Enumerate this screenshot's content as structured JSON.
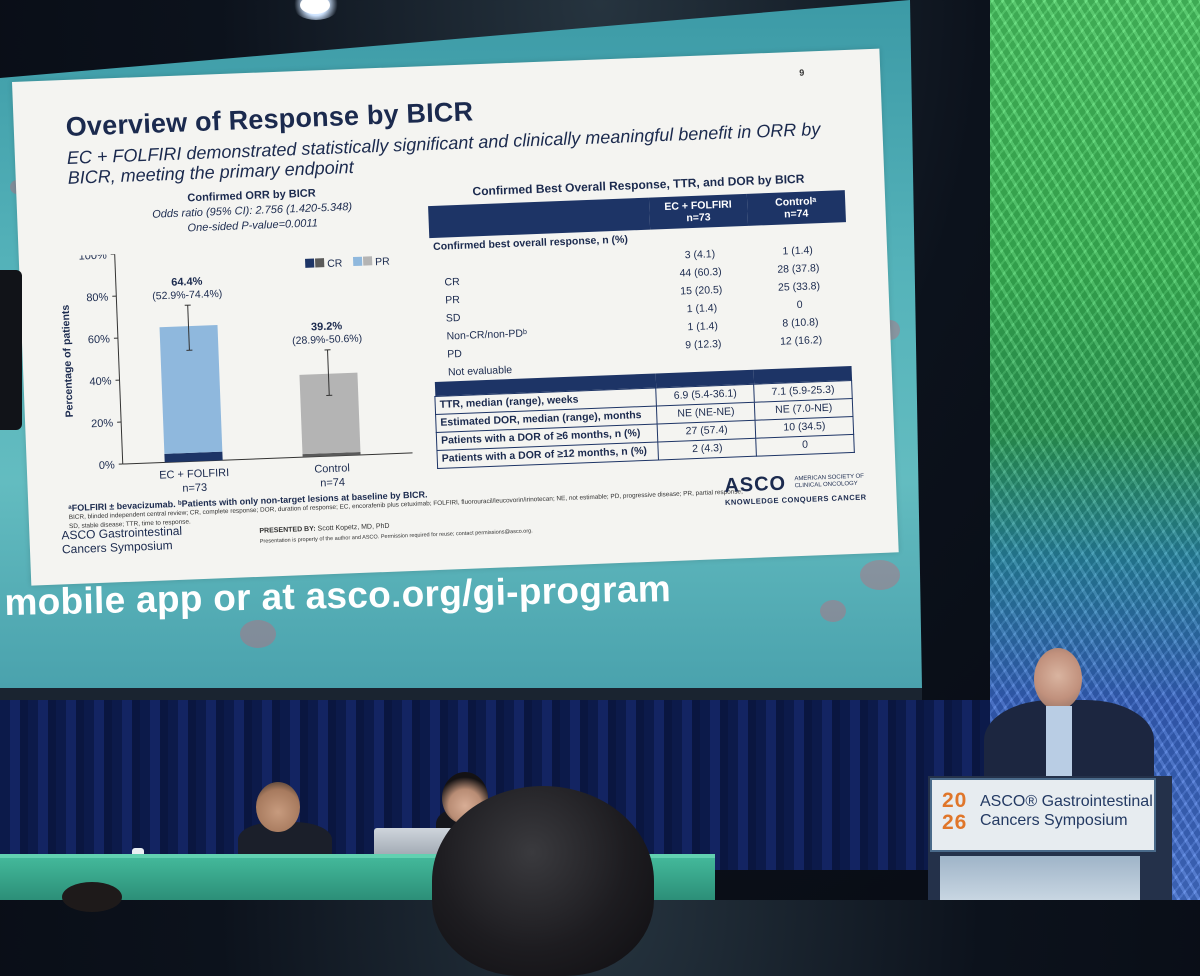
{
  "slide": {
    "number": "9",
    "title": "Overview of Response by BICR",
    "subtitle": "EC + FOLFIRI demonstrated statistically significant and clinically meaningful benefit in ORR by BICR, meeting the primary endpoint",
    "chart_header": {
      "title": "Confirmed ORR by BICR",
      "odds_ratio": "Odds ratio (95% CI): 2.756 (1.420-5.348)",
      "p_value": "One-sided P-value=0.0011"
    },
    "table": {
      "title": "Confirmed Best Overall Response, TTR, and DOR by BICR",
      "col_ec": "EC + FOLFIRI",
      "col_ec_n": "n=73",
      "col_control": "Controlᵃ",
      "col_control_n": "n=74",
      "section_label": "Confirmed best overall response, n (%)",
      "rows": [
        {
          "label": "",
          "ec": "3 (4.1)",
          "control": "1 (1.4)"
        },
        {
          "label": "CR",
          "ec": "44 (60.3)",
          "control": "28 (37.8)"
        },
        {
          "label": "PR",
          "ec": "15 (20.5)",
          "control": "25 (33.8)"
        },
        {
          "label": "SD",
          "ec": "1 (1.4)",
          "control": "0"
        },
        {
          "label": "Non-CR/non-PDᵇ",
          "ec": "1 (1.4)",
          "control": "8 (10.8)"
        },
        {
          "label": "PD",
          "ec": "9 (12.3)",
          "control": "12 (16.2)"
        },
        {
          "label": "Not evaluable",
          "ec": "",
          "control": ""
        }
      ],
      "boxed_rows": [
        {
          "label": "TTR, median (range), weeks",
          "ec": "6.9 (5.4-36.1)",
          "control": "7.1 (5.9-25.3)"
        },
        {
          "label": "Estimated DOR, median (range), months",
          "ec": "NE (NE-NE)",
          "control": "NE (7.0-NE)"
        },
        {
          "label": "Patients with a DOR of ≥6 months, n (%)",
          "ec": "27 (57.4)",
          "control": "10 (34.5)"
        },
        {
          "label": "Patients with a DOR of ≥12 months, n (%)",
          "ec": "2 (4.3)",
          "control": "0"
        }
      ]
    },
    "footnote_bold": "ᵃFOLFIRI ± bevacizumab. ᵇPatients with only non-target lesions at baseline by BICR.",
    "footnote_1": "BICR, blinded independent central review; CR, complete response; DOR, duration of response; EC, encorafenib plus cetuximab; FOLFIRI, fluorouracil/leucovorin/irinotecan; NE, not estimable; PD, progressive disease; PR, partial response;",
    "footnote_2": "SD, stable disease; TTR, time to response.",
    "logo_left_1": "ASCO Gastrointestinal",
    "logo_left_2": "Cancers Symposium",
    "presented_label": "PRESENTED BY:",
    "presenter": "Scott Kopetz, MD, PhD",
    "presentation_note": "Presentation is property of the author and ASCO. Permission required for reuse; contact permissions@asco.org.",
    "asco_logo": "ASCO",
    "asco_logo_small_1": "AMERICAN SOCIETY OF",
    "asco_logo_small_2": "CLINICAL ONCOLOGY",
    "asco_tagline": "KNOWLEDGE CONQUERS CANCER"
  },
  "chart_data": {
    "type": "bar",
    "categories": [
      "EC + FOLFIRI",
      "Control"
    ],
    "category_n": [
      "n=73",
      "n=74"
    ],
    "series": [
      {
        "name": "CR",
        "values": [
          4.1,
          1.4
        ]
      },
      {
        "name": "PR",
        "values": [
          60.3,
          37.8
        ]
      }
    ],
    "totals": [
      64.4,
      39.2
    ],
    "total_labels": [
      "64.4%",
      "39.2%"
    ],
    "ci_labels": [
      "(52.9%-74.4%)",
      "(28.9%-50.6%)"
    ],
    "ci_low": [
      52.9,
      28.9
    ],
    "ci_high": [
      74.4,
      50.6
    ],
    "ylabel": "Percentage of patients",
    "ylim": [
      0,
      100
    ],
    "yticks": [
      "0%",
      "20%",
      "40%",
      "60%",
      "80%",
      "100%"
    ],
    "legend": [
      "CR",
      "PR"
    ],
    "legend_position": "top-right",
    "colors": {
      "ec_cr": "#1d3466",
      "ec_pr": "#8fb8dd",
      "control_cr": "#5a5a5a",
      "control_pr": "#b4b4b4"
    }
  },
  "banner": {
    "text": "mobile app or at asco.org/gi-program"
  },
  "podium": {
    "year_top": "20",
    "year_bottom": "26",
    "name_1": "ASCO® Gastrointestinal",
    "name_2": "Cancers Symposium"
  }
}
